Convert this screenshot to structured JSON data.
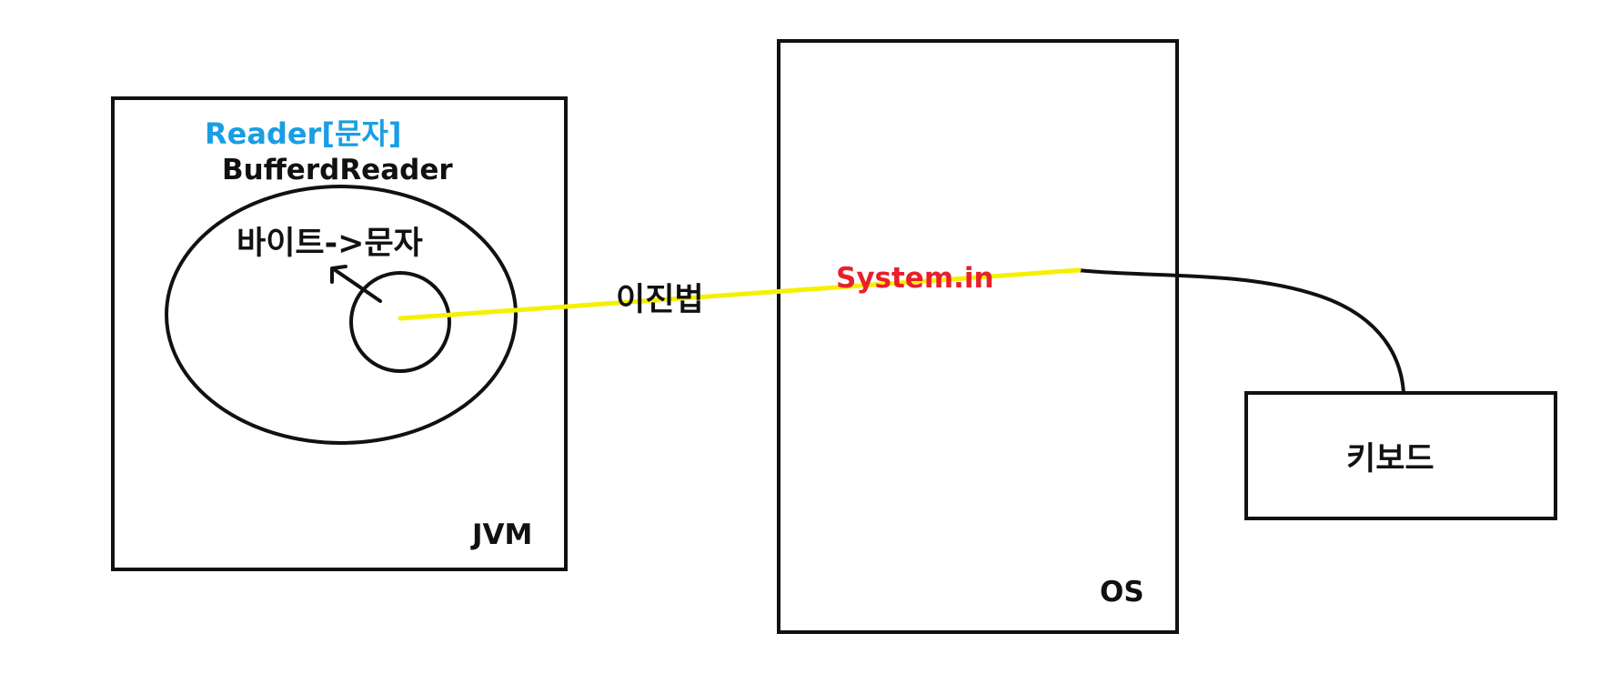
{
  "labels": {
    "reader": "Reader[문자]",
    "buffered_reader": "BufferdReader",
    "byte_to_char": "바이트->문자",
    "binary": "이진법",
    "system_in": "System.in",
    "jvm": "JVM",
    "os": "OS",
    "keyboard": "키보드"
  },
  "colors": {
    "reader_text": "#1a9ee3",
    "system_in_text": "#e8202b",
    "stream_line": "#f5f000",
    "outline": "#111111"
  }
}
